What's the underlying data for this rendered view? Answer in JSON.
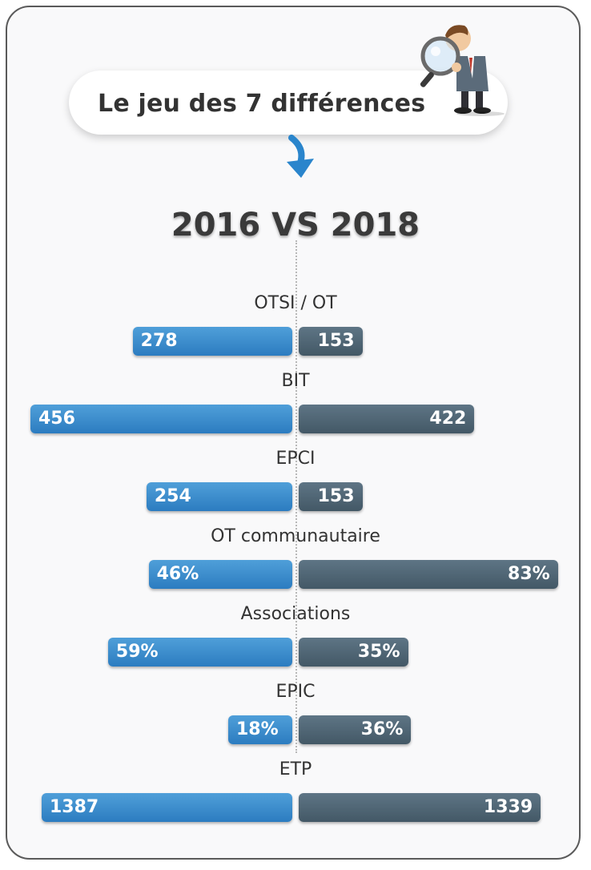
{
  "header": {
    "title": "Le jeu des 7 différences",
    "mascot_icon": "detective-magnifier-icon",
    "arrow_icon": "curved-arrow-down-icon"
  },
  "comparison_title": "2016 VS 2018",
  "colors": {
    "left": "#2c7cc0",
    "right": "#435866"
  },
  "chart_data": {
    "type": "bar",
    "orientation": "diverging-horizontal",
    "title": "2016 VS 2018",
    "categories": [
      "OTSI / OT",
      "BIT",
      "EPCI",
      "OT communautaire",
      "Associations",
      "EPIC",
      "ETP"
    ],
    "series": [
      {
        "values": [
          278,
          456,
          254,
          46,
          59,
          18,
          1387
        ],
        "labels": [
          "278",
          "456",
          "254",
          "46%",
          "59%",
          "18%",
          "1387"
        ]
      },
      {
        "values": [
          153,
          422,
          153,
          83,
          35,
          36,
          1339
        ],
        "labels": [
          "153",
          "422",
          "153",
          "83%",
          "35%",
          "36%",
          "1339"
        ]
      }
    ]
  }
}
